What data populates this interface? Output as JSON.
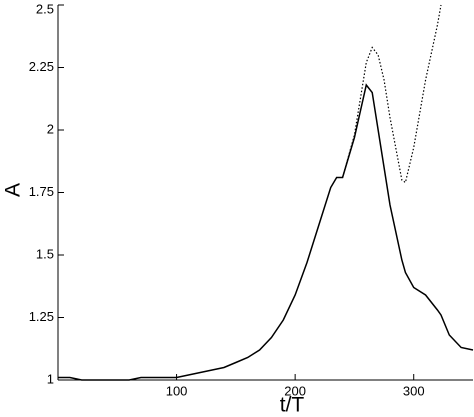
{
  "chart_data": {
    "type": "line",
    "x_label": "t/T",
    "y_label": "A",
    "x": [
      0,
      10,
      20,
      30,
      40,
      50,
      60,
      70,
      80,
      90,
      100,
      110,
      120,
      130,
      140,
      150,
      160,
      170,
      180,
      190,
      200,
      210,
      220,
      230,
      235,
      240,
      250,
      260,
      265,
      270,
      275,
      280,
      290,
      293,
      300,
      310,
      320,
      323,
      330,
      340,
      350
    ],
    "series": [
      {
        "color": "#000000",
        "dash": "solid",
        "values": [
          1.01,
          1.01,
          1.0,
          1.0,
          1.0,
          1.0,
          1.0,
          1.01,
          1.01,
          1.01,
          1.01,
          1.02,
          1.03,
          1.04,
          1.05,
          1.07,
          1.09,
          1.12,
          1.17,
          1.24,
          1.34,
          1.47,
          1.62,
          1.77,
          1.81,
          1.81,
          1.97,
          2.18,
          2.15,
          2.0,
          1.85,
          1.7,
          1.48,
          1.43,
          1.37,
          1.34,
          1.28,
          1.26,
          1.18,
          1.13,
          1.12
        ]
      },
      {
        "color": "#000000",
        "dash": "dotted",
        "values": [
          null,
          null,
          null,
          null,
          null,
          null,
          null,
          null,
          null,
          null,
          null,
          null,
          null,
          null,
          null,
          null,
          null,
          null,
          null,
          null,
          null,
          null,
          null,
          null,
          null,
          1.81,
          1.98,
          2.27,
          2.33,
          2.3,
          2.2,
          2.05,
          1.8,
          1.79,
          1.93,
          2.2,
          2.42,
          2.5,
          null,
          null,
          null
        ]
      }
    ],
    "xlim": [
      0,
      350
    ],
    "ylim": [
      1,
      2.5
    ],
    "xticks": [
      100,
      200,
      300
    ],
    "yticks": [
      1,
      1.25,
      1.5,
      1.75,
      2,
      2.25,
      2.5
    ]
  }
}
